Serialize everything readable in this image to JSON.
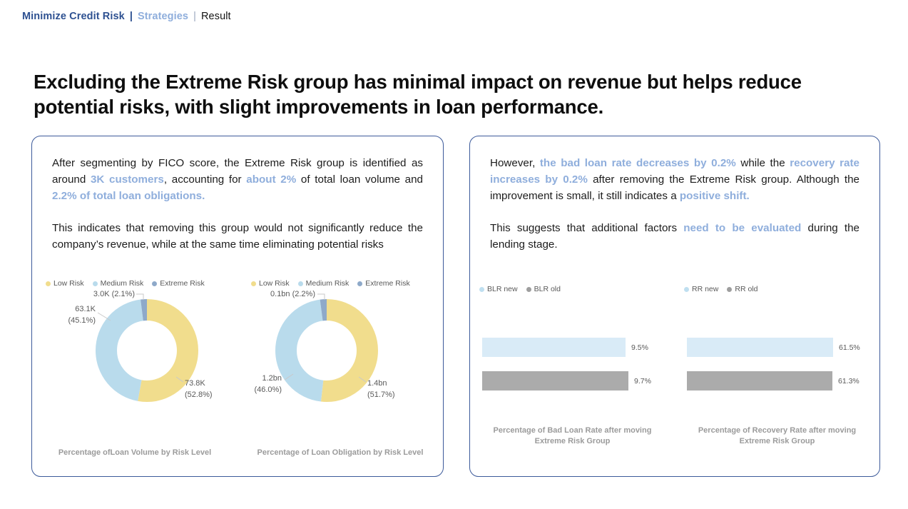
{
  "breadcrumb": {
    "separator": "|",
    "items": [
      {
        "label": "Minimize Credit Risk"
      },
      {
        "label": "Strategies"
      },
      {
        "label": "Result"
      }
    ]
  },
  "headline": "Excluding the Extreme Risk group has minimal impact on revenue but helps reduce potential risks, with slight improvements in loan performance.",
  "left_card": {
    "paragraphs": [
      {
        "segments": [
          {
            "t": "After segmenting by FICO score, the Extreme Risk group is identified as around "
          },
          {
            "t": "3K customers",
            "h": true
          },
          {
            "t": ", accounting for "
          },
          {
            "t": "about 2%",
            "h": true
          },
          {
            "t": " of total loan volume and "
          },
          {
            "t": "2.2% of total loan obligations.",
            "h": true
          }
        ]
      },
      {
        "segments": [
          {
            "t": "This indicates that removing this group would not significantly reduce the company’s revenue, while at the same time eliminating potential risks"
          }
        ]
      }
    ]
  },
  "right_card": {
    "paragraphs": [
      {
        "segments": [
          {
            "t": "However, "
          },
          {
            "t": "the bad loan rate decreases by 0.2%",
            "h": true
          },
          {
            "t": " while the "
          },
          {
            "t": "recovery rate increases by 0.2%",
            "h": true
          },
          {
            "t": " after removing the Extreme Risk group. Although the improvement is small, it still indicates a "
          },
          {
            "t": "positive shift.",
            "h": true
          }
        ]
      },
      {
        "segments": [
          {
            "t": "This suggests that additional factors "
          },
          {
            "t": "need to be evaluated",
            "h": true
          },
          {
            "t": " during the lending stage."
          }
        ]
      }
    ]
  },
  "colors": {
    "accent_navy": "#2e5191",
    "accent_blue": "#8faedc",
    "risk_yellow": "#f1dd8d",
    "risk_medium_blue": "#b9dbec",
    "risk_extreme_steel": "#8ea9c9",
    "bar_new_blue": "#d9ebf7",
    "bar_old_gray": "#ababab"
  },
  "chart_data": [
    {
      "type": "donut",
      "title": "Percentage ofLoan Volume by Risk Level",
      "legend": [
        "Low Risk",
        "Medium Risk",
        "Extreme Risk"
      ],
      "colors": [
        "#f1dd8d",
        "#b9dbec",
        "#8ea9c9"
      ],
      "values": [
        52.8,
        45.1,
        2.1
      ],
      "callouts": {
        "low_l1": "73.8K",
        "low_l2": "(52.8%)",
        "medium_l1": "63.1K",
        "medium_l2": "(45.1%)",
        "extreme": "3.0K (2.1%)"
      }
    },
    {
      "type": "donut",
      "title": "Percentage of Loan Obligation by Risk Level",
      "legend": [
        "Low Risk",
        "Medium Risk",
        "Extreme Risk"
      ],
      "colors": [
        "#f1dd8d",
        "#b9dbec",
        "#8ea9c9"
      ],
      "values": [
        51.7,
        46.0,
        2.2
      ],
      "callouts": {
        "low_l1": "1.4bn",
        "low_l2": "(51.7%)",
        "medium_l1": "1.2bn",
        "medium_l2": "(46.0%)",
        "extreme": "0.1bn (2.2%)"
      }
    },
    {
      "type": "bar",
      "title": "Percentage of Bad Loan Rate after moving Extreme Risk Group",
      "legend": [
        "BLR new",
        "BLR old"
      ],
      "colors": [
        "#d9ebf7",
        "#ababab"
      ],
      "values": [
        9.5,
        9.7
      ],
      "labels": [
        "9.5%",
        "9.7%"
      ]
    },
    {
      "type": "bar",
      "title": "Percentage of Recovery Rate after moving Extreme Risk Group",
      "legend": [
        "RR new",
        "RR old"
      ],
      "colors": [
        "#d9ebf7",
        "#ababab"
      ],
      "values": [
        61.5,
        61.3
      ],
      "labels": [
        "61.5%",
        "61.3%"
      ]
    }
  ]
}
